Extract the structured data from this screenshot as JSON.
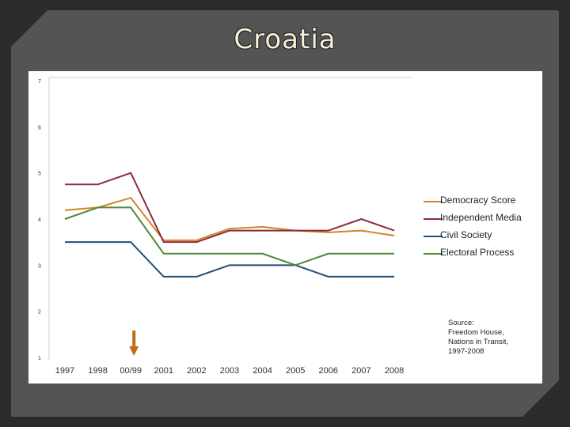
{
  "slide": {
    "title": "Croatia"
  },
  "colors": {
    "Democracy Score": "#d4852a",
    "Independent Media": "#8a2e3c",
    "Civil Society": "#1f4e79",
    "Electoral Process": "#4f8a3c",
    "arrow": "#c06a1c",
    "axis": "#cfcfcf"
  },
  "source_note": {
    "lines": [
      "Source:",
      "Freedom House,",
      "Nations in Transit,",
      "1997-2008"
    ]
  },
  "annotation": {
    "arrow_icon": "down-arrow-icon",
    "points_to_category": "00/99"
  },
  "chart_data": {
    "type": "line",
    "categories": [
      "1997",
      "1998",
      "00/99",
      "2001",
      "2002",
      "2003",
      "2004",
      "2005",
      "2006",
      "2007",
      "2008"
    ],
    "ylim": [
      1,
      7
    ],
    "yticks": [
      "1",
      "2",
      "3",
      "4",
      "5",
      "6",
      "7"
    ],
    "legend_position": "right",
    "grid": false,
    "series": [
      {
        "name": "Democracy Score",
        "values": [
          4.19,
          4.25,
          4.46,
          3.54,
          3.54,
          3.79,
          3.83,
          3.75,
          3.71,
          3.75,
          3.64
        ]
      },
      {
        "name": "Independent Media",
        "values": [
          4.75,
          4.75,
          5.0,
          3.5,
          3.5,
          3.75,
          3.75,
          3.75,
          3.75,
          4.0,
          3.75
        ]
      },
      {
        "name": "Civil Society",
        "values": [
          3.5,
          3.5,
          3.5,
          2.75,
          2.75,
          3.0,
          3.0,
          3.0,
          2.75,
          2.75,
          2.75
        ]
      },
      {
        "name": "Electoral Process",
        "values": [
          4.0,
          4.25,
          4.25,
          3.25,
          3.25,
          3.25,
          3.25,
          3.0,
          3.25,
          3.25,
          3.25
        ]
      }
    ]
  }
}
